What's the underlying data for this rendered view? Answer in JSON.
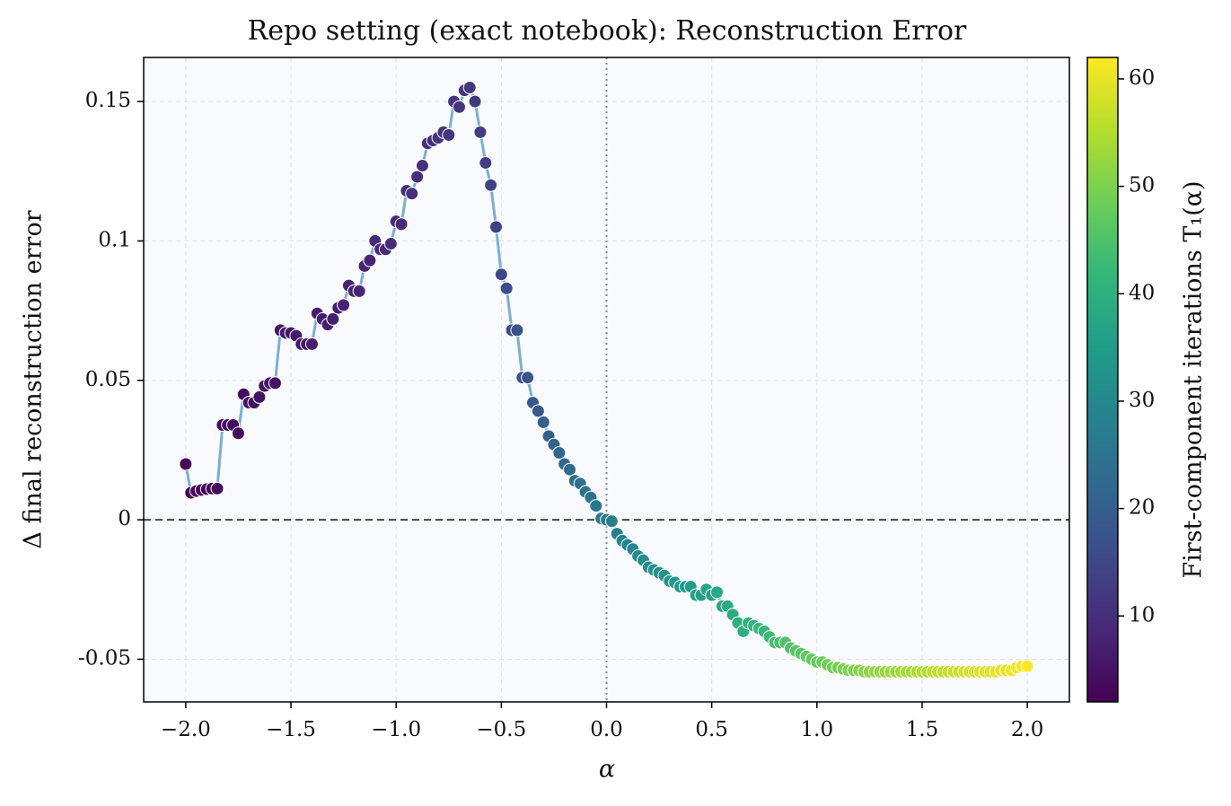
{
  "chart_data": {
    "type": "scatter",
    "title": "Repo setting (exact notebook): Reconstruction Error",
    "x_label": "α",
    "y_label": "Δ final reconstruction error",
    "colorbar_label": "First-component iterations T₁(α)",
    "colormap": "viridis",
    "line_color": "#7bafd2",
    "x": [
      -2.0,
      -1.975,
      -1.95,
      -1.925,
      -1.9,
      -1.875,
      -1.85,
      -1.825,
      -1.8,
      -1.775,
      -1.75,
      -1.725,
      -1.7,
      -1.675,
      -1.65,
      -1.625,
      -1.6,
      -1.575,
      -1.55,
      -1.525,
      -1.5,
      -1.475,
      -1.45,
      -1.425,
      -1.4,
      -1.375,
      -1.35,
      -1.325,
      -1.3,
      -1.275,
      -1.25,
      -1.225,
      -1.2,
      -1.175,
      -1.15,
      -1.125,
      -1.1,
      -1.075,
      -1.05,
      -1.025,
      -1.0,
      -0.975,
      -0.95,
      -0.925,
      -0.9,
      -0.875,
      -0.85,
      -0.825,
      -0.8,
      -0.775,
      -0.75,
      -0.725,
      -0.7,
      -0.675,
      -0.65,
      -0.625,
      -0.6,
      -0.575,
      -0.55,
      -0.525,
      -0.5,
      -0.475,
      -0.45,
      -0.425,
      -0.4,
      -0.375,
      -0.35,
      -0.325,
      -0.3,
      -0.275,
      -0.25,
      -0.225,
      -0.2,
      -0.175,
      -0.15,
      -0.125,
      -0.1,
      -0.075,
      -0.05,
      -0.025,
      0.0,
      0.025,
      0.05,
      0.075,
      0.1,
      0.125,
      0.15,
      0.175,
      0.2,
      0.225,
      0.25,
      0.275,
      0.3,
      0.325,
      0.35,
      0.375,
      0.4,
      0.425,
      0.45,
      0.475,
      0.5,
      0.525,
      0.55,
      0.575,
      0.6,
      0.625,
      0.65,
      0.675,
      0.7,
      0.725,
      0.75,
      0.775,
      0.8,
      0.825,
      0.85,
      0.875,
      0.9,
      0.925,
      0.95,
      0.975,
      1.0,
      1.025,
      1.05,
      1.075,
      1.1,
      1.125,
      1.15,
      1.175,
      1.2,
      1.225,
      1.25,
      1.275,
      1.3,
      1.325,
      1.35,
      1.375,
      1.4,
      1.425,
      1.45,
      1.475,
      1.5,
      1.525,
      1.55,
      1.575,
      1.6,
      1.625,
      1.65,
      1.675,
      1.7,
      1.725,
      1.75,
      1.775,
      1.8,
      1.825,
      1.85,
      1.875,
      1.9,
      1.925,
      1.95,
      1.975,
      2.0
    ],
    "values": [
      0.02,
      0.0097,
      0.0103,
      0.0107,
      0.011,
      0.0112,
      0.0112,
      0.034,
      0.034,
      0.034,
      0.031,
      0.045,
      0.042,
      0.042,
      0.044,
      0.048,
      0.049,
      0.049,
      0.068,
      0.067,
      0.067,
      0.066,
      0.063,
      0.063,
      0.063,
      0.074,
      0.072,
      0.07,
      0.072,
      0.076,
      0.077,
      0.084,
      0.082,
      0.082,
      0.091,
      0.093,
      0.1,
      0.097,
      0.097,
      0.099,
      0.107,
      0.106,
      0.118,
      0.117,
      0.123,
      0.127,
      0.135,
      0.136,
      0.137,
      0.139,
      0.138,
      0.15,
      0.148,
      0.154,
      0.155,
      0.15,
      0.139,
      0.128,
      0.12,
      0.105,
      0.088,
      0.083,
      0.068,
      0.068,
      0.051,
      0.051,
      0.042,
      0.039,
      0.035,
      0.03,
      0.027,
      0.024,
      0.02,
      0.018,
      0.014,
      0.013,
      0.01,
      0.008,
      0.005,
      0.0005,
      0.0,
      -0.0005,
      -0.005,
      -0.0075,
      -0.009,
      -0.0105,
      -0.013,
      -0.0145,
      -0.017,
      -0.018,
      -0.019,
      -0.02,
      -0.022,
      -0.0225,
      -0.024,
      -0.024,
      -0.024,
      -0.027,
      -0.027,
      -0.025,
      -0.027,
      -0.026,
      -0.031,
      -0.031,
      -0.034,
      -0.037,
      -0.04,
      -0.037,
      -0.038,
      -0.039,
      -0.04,
      -0.042,
      -0.044,
      -0.044,
      -0.044,
      -0.046,
      -0.047,
      -0.048,
      -0.049,
      -0.05,
      -0.051,
      -0.051,
      -0.052,
      -0.053,
      -0.053,
      -0.0535,
      -0.054,
      -0.054,
      -0.054,
      -0.0545,
      -0.0545,
      -0.0545,
      -0.0545,
      -0.0545,
      -0.0545,
      -0.0545,
      -0.0545,
      -0.0545,
      -0.0545,
      -0.0545,
      -0.0545,
      -0.0545,
      -0.0545,
      -0.0545,
      -0.0545,
      -0.0545,
      -0.0545,
      -0.0545,
      -0.0545,
      -0.0545,
      -0.0545,
      -0.0545,
      -0.0545,
      -0.0545,
      -0.0545,
      -0.054,
      -0.054,
      -0.054,
      -0.053,
      -0.0525,
      -0.0525
    ],
    "color_values": [
      3,
      3,
      3,
      3,
      3,
      3,
      4,
      4,
      4,
      4,
      4,
      4,
      5,
      5,
      5,
      5,
      5,
      5,
      6,
      6,
      6,
      6,
      6,
      6,
      7,
      7,
      7,
      7,
      7,
      7,
      8,
      8,
      8,
      8,
      8,
      8,
      9,
      9,
      9,
      9,
      9,
      9,
      10,
      10,
      10,
      10,
      10,
      10,
      11,
      11,
      11,
      11,
      11,
      11,
      12,
      12,
      13,
      13,
      14,
      14,
      15,
      16,
      16,
      17,
      17,
      18,
      19,
      19,
      20,
      20,
      21,
      22,
      22,
      23,
      23,
      24,
      25,
      25,
      26,
      26,
      27,
      28,
      28,
      29,
      29,
      30,
      30,
      31,
      31,
      32,
      32,
      33,
      33,
      34,
      34,
      35,
      35,
      36,
      36,
      37,
      37,
      38,
      38,
      39,
      39,
      40,
      40,
      41,
      41,
      42,
      42,
      43,
      44,
      44,
      45,
      45,
      46,
      46,
      47,
      47,
      48,
      48,
      49,
      49,
      49,
      50,
      50,
      50,
      51,
      51,
      51,
      52,
      52,
      52,
      53,
      53,
      53,
      54,
      54,
      54,
      55,
      55,
      56,
      56,
      56,
      57,
      57,
      57,
      58,
      58,
      58,
      59,
      59,
      59,
      60,
      60,
      60,
      61,
      61,
      61,
      62
    ],
    "xlim": [
      -2.2,
      2.2
    ],
    "ylim": [
      -0.0653,
      0.1658
    ],
    "clim": [
      2,
      62
    ],
    "xticks": [
      {
        "value": -2.0,
        "label": "−2.0"
      },
      {
        "value": -1.5,
        "label": "−1.5"
      },
      {
        "value": -1.0,
        "label": "−1.0"
      },
      {
        "value": -0.5,
        "label": "−0.5"
      },
      {
        "value": 0.0,
        "label": "0.0"
      },
      0.5,
      {
        "value": 1.0,
        "label": "1.0"
      },
      1.5,
      {
        "value": 2.0,
        "label": "2.0"
      }
    ],
    "yticks": [
      -0.05,
      0,
      0.05,
      0.1,
      0.15
    ],
    "cticks": [
      10,
      20,
      30,
      40,
      50,
      60
    ],
    "hlines": [
      0
    ],
    "vlines": [
      0
    ],
    "grid": true
  }
}
